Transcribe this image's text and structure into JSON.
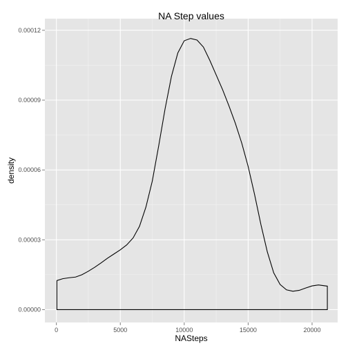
{
  "chart_data": {
    "type": "area",
    "title": "NA Step values",
    "xlabel": "NASteps",
    "ylabel": "density",
    "xlim": [
      -900,
      22000
    ],
    "ylim": [
      -5.5e-06,
      0.000125
    ],
    "x_ticks": [
      0,
      5000,
      10000,
      15000,
      20000
    ],
    "x_tick_labels": [
      "0",
      "5000",
      "10000",
      "15000",
      "20000"
    ],
    "y_ticks": [
      0,
      3e-05,
      6e-05,
      9e-05,
      0.00012
    ],
    "y_tick_labels": [
      "0.00000",
      "0.00003",
      "0.00006",
      "0.00009",
      "0.00012"
    ],
    "grid": true,
    "legend": "none",
    "colors": {
      "panel": "#e5e5e5",
      "grid_major": "#ffffff",
      "grid_minor": "#f2f2f2",
      "line": "#000000"
    },
    "series": [
      {
        "x": [
          41,
          500,
          1000,
          1500,
          2000,
          2500,
          3000,
          3500,
          4000,
          4500,
          5000,
          5500,
          6000,
          6500,
          7000,
          7500,
          8000,
          8500,
          9000,
          9500,
          10000,
          10500,
          11000,
          11500,
          12000,
          12500,
          13000,
          13500,
          14000,
          14500,
          15000,
          15500,
          16000,
          16500,
          17000,
          17500,
          18000,
          18500,
          19000,
          19500,
          20000,
          20500,
          21194
        ],
        "y": [
          1.25e-05,
          1.33e-05,
          1.37e-05,
          1.4e-05,
          1.5e-05,
          1.65e-05,
          1.82e-05,
          2.01e-05,
          2.21e-05,
          2.39e-05,
          2.57e-05,
          2.78e-05,
          3.08e-05,
          3.58e-05,
          4.4e-05,
          5.52e-05,
          7.03e-05,
          8.62e-05,
          0.0001002,
          0.0001103,
          0.0001155,
          0.0001165,
          0.0001158,
          0.0001128,
          0.0001071,
          0.0001008,
          9.45e-05,
          8.75e-05,
          8e-05,
          7.15e-05,
          6.15e-05,
          4.95e-05,
          3.65e-05,
          2.48e-05,
          1.58e-05,
          1.08e-05,
          8.5e-06,
          7.9e-06,
          8.3e-06,
          9.3e-06,
          1.02e-05,
          1.06e-05,
          1.01e-05
        ]
      }
    ]
  }
}
